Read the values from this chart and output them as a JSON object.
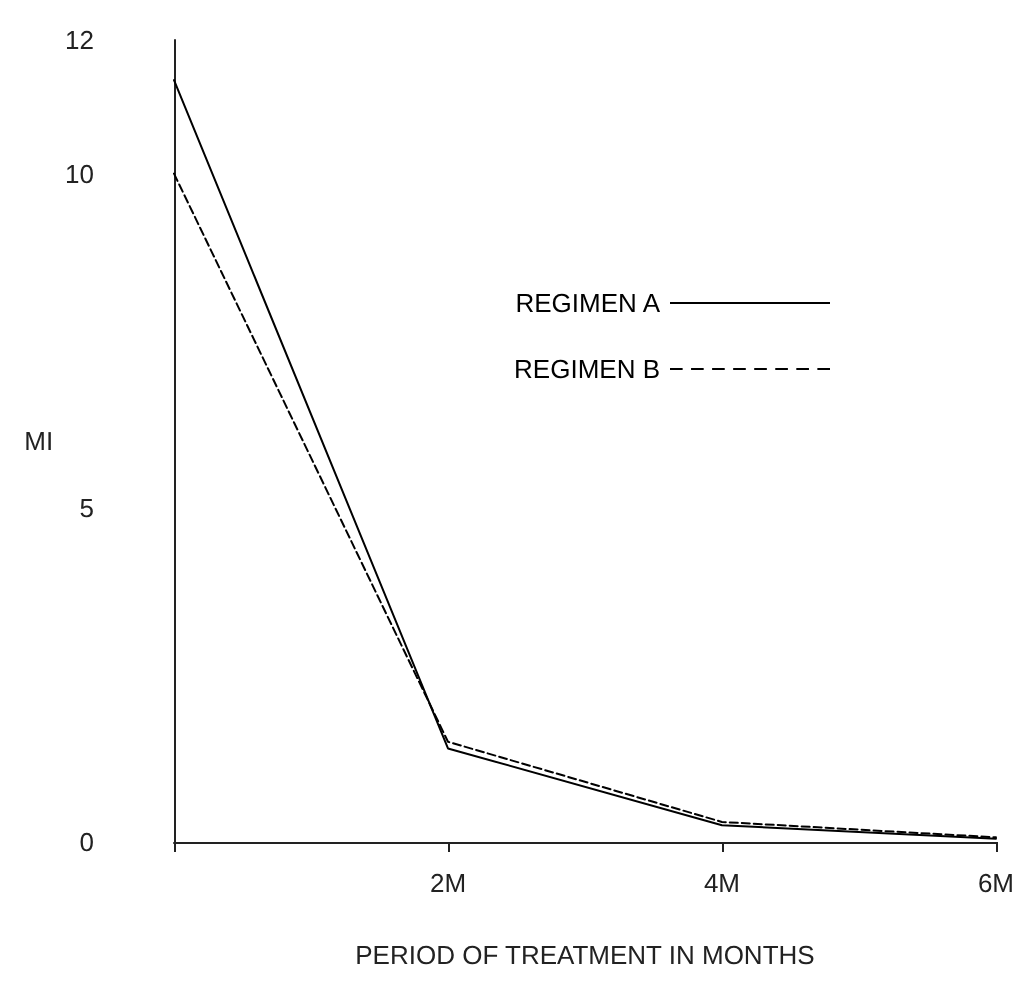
{
  "chart_data": {
    "type": "line",
    "xlabel": "PERIOD OF TREATMENT IN MONTHS",
    "ylabel": "MI",
    "x": [
      0,
      2,
      4,
      6
    ],
    "series": [
      {
        "name": "REGIMEN A",
        "color": "#000000",
        "line_style": "solid",
        "values": [
          11.4,
          1.4,
          0.25,
          0.05
        ]
      },
      {
        "name": "REGIMEN B",
        "color": "#000000",
        "line_style": "dashed",
        "values": [
          10.0,
          1.5,
          0.3,
          0.07
        ]
      }
    ],
    "xlim": [
      0,
      6
    ],
    "xticks": [
      {
        "value": 0,
        "label": null
      },
      {
        "value": 2,
        "label": "2M"
      },
      {
        "value": 4,
        "label": "4M"
      },
      {
        "value": 6,
        "label": "6M"
      }
    ],
    "ylim": [
      0,
      12
    ],
    "yticks": [
      0,
      5,
      10,
      12
    ],
    "grid": false,
    "legend": "top right",
    "marker": "none"
  }
}
